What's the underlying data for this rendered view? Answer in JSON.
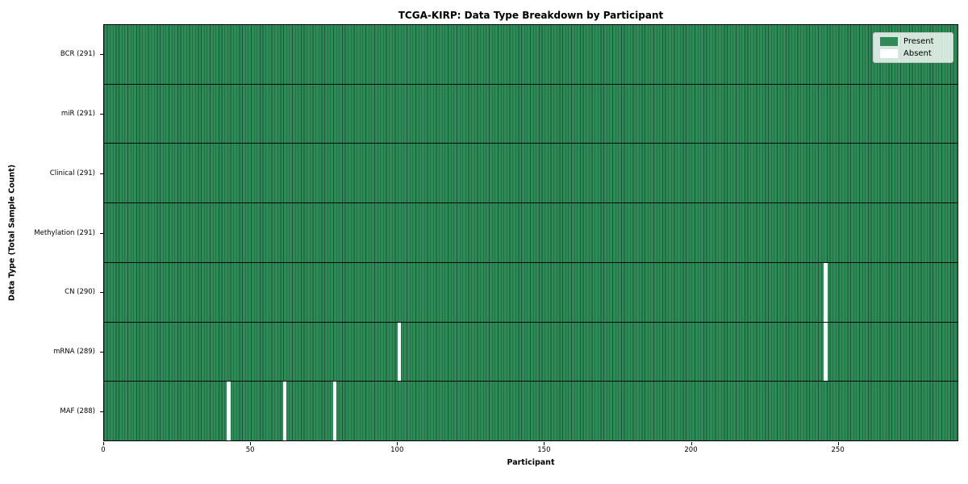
{
  "chart_data": {
    "type": "heatmap",
    "title": "TCGA-KIRP: Data Type Breakdown by Participant",
    "xlabel": "Participant",
    "ylabel": "Data Type (Total Sample Count)",
    "x_ticks": [
      0,
      50,
      100,
      150,
      200,
      250
    ],
    "xlim": [
      0,
      291
    ],
    "n_participants": 291,
    "rows": [
      {
        "label": "BCR (291)",
        "present_count": 291,
        "absent_participants": []
      },
      {
        "label": "miR (291)",
        "present_count": 291,
        "absent_participants": []
      },
      {
        "label": "Clinical (291)",
        "present_count": 291,
        "absent_participants": []
      },
      {
        "label": "Methylation (291)",
        "present_count": 291,
        "absent_participants": []
      },
      {
        "label": "CN (290)",
        "present_count": 290,
        "absent_participants": [
          245
        ]
      },
      {
        "label": "mRNA (289)",
        "present_count": 289,
        "absent_participants": [
          100,
          245
        ]
      },
      {
        "label": "MAF (288)",
        "present_count": 288,
        "absent_participants": [
          42,
          61,
          78
        ]
      }
    ],
    "legend": [
      {
        "label": "Present",
        "color": "#2e8b57"
      },
      {
        "label": "Absent",
        "color": "#ffffff"
      }
    ],
    "colors": {
      "present": "#2e8b57",
      "bar_edge": "#1b5436",
      "row_divider": "#0a0a0a",
      "absent": "#ffffff"
    },
    "legend_position": "upper right",
    "grid": false
  }
}
